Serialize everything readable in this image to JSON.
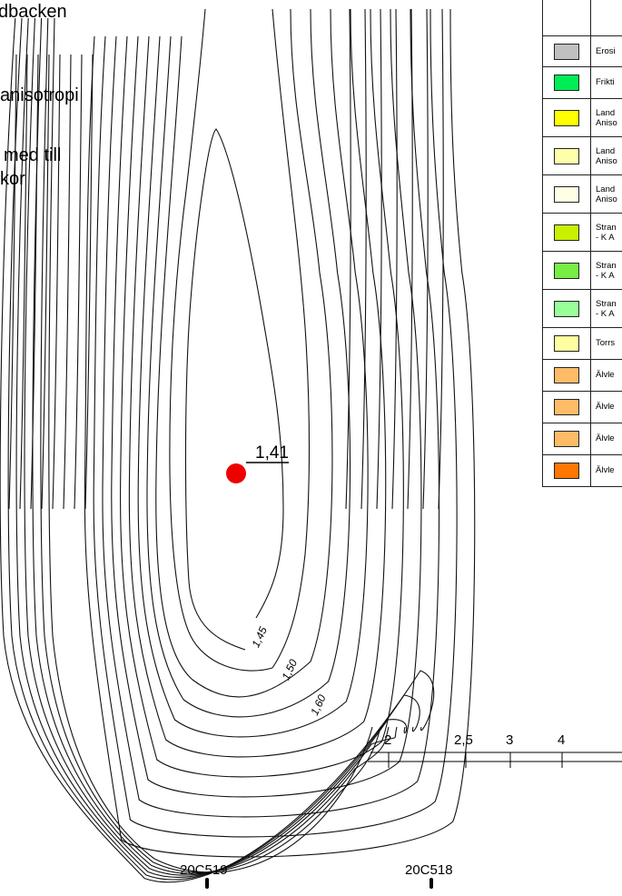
{
  "heading": {
    "line1": "dbacken",
    "line2": "anisotropi",
    "line3": "med till",
    "line4": "kor"
  },
  "contours": {
    "label_145": "1,45",
    "label_150": "1,50",
    "label_160": "1,60"
  },
  "critical_point": {
    "value": "1,41",
    "marker_color": "#ee0000"
  },
  "scale": {
    "ticks": [
      "2",
      "2,5",
      "3",
      "4"
    ]
  },
  "boreholes": [
    {
      "label": "20C519"
    },
    {
      "label": "20C518"
    }
  ],
  "legend": {
    "rows": [
      {
        "label": "Erosi",
        "label2": "",
        "color": "#c0c0c0"
      },
      {
        "label": "Frikti",
        "label2": "",
        "color": "#00ee55"
      },
      {
        "label": "Land",
        "label2": "Aniso",
        "color": "#ffff00"
      },
      {
        "label": "Land",
        "label2": "Aniso",
        "color": "#ffffaa"
      },
      {
        "label": "Land",
        "label2": "Aniso",
        "color": "#ffffe6"
      },
      {
        "label": "Stran",
        "label2": "- K A",
        "color": "#c8f000"
      },
      {
        "label": "Stran",
        "label2": "- K  A",
        "color": "#77ee44"
      },
      {
        "label": "Stran",
        "label2": "- K  A",
        "color": "#99ff99"
      },
      {
        "label": "Torrs",
        "label2": "",
        "color": "#ffffa0"
      },
      {
        "label": "Älvle",
        "label2": "",
        "color": "#ffbb66"
      },
      {
        "label": "Älvle",
        "label2": "",
        "color": "#ffbb66"
      },
      {
        "label": "Älvle",
        "label2": "",
        "color": "#ffbb66"
      },
      {
        "label": "Älvle",
        "label2": "",
        "color": "#ff7700"
      }
    ]
  }
}
